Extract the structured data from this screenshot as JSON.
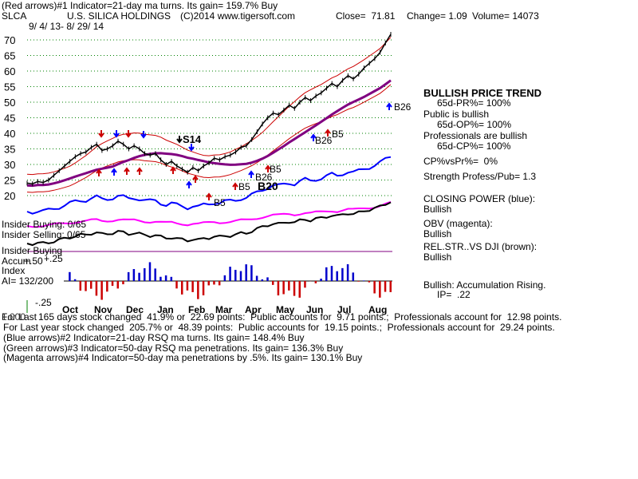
{
  "header": {
    "line1": "(Red arrows)#1 Indicator=21-day ma turns. Its gain= 159.7% Buy",
    "symbol": "SLCA",
    "company": "U.S. SILICA HOLDINGS",
    "copyright": "(C)2014 www.tigersoft.com",
    "close": "Close=  71.81",
    "change": "Change= 1.09",
    "volume": "Volume= 14073",
    "dates": "9/ 4/ 13- 8/ 29/ 14"
  },
  "right_panel": {
    "trend_title": "BULLISH PRICE TREND",
    "pr": "65d-PR%= 100%",
    "public_title": "Public is bullish",
    "op": "65d-OP%= 100%",
    "pro_title": "Professionals are bullish",
    "cp": "65d-CP%= 100%",
    "cpvspr": "CP%vsPr%=  0%",
    "strength": "Strength Profess/Pub= 1.3",
    "closing_power": "CLOSING POWER (blue):",
    "closing_power_val": "Bullish",
    "obv": "OBV (magenta):",
    "obv_val": "Bullish",
    "relstr": "REL.STR..VS DJI (brown):",
    "relstr_val": "Bullish",
    "accum": "Bullish: Accumulation Rising.",
    "ip": "IP=  .22"
  },
  "left_labels": {
    "insider_buying": "Insider Buying: 0/65",
    "insider_selling": "Insider Selling: 0/65",
    "insider_buying2": "Insider Buying",
    "accum": "Accum",
    "index": "Index",
    "ai": "AI= 132/200",
    "plus25": "+.25",
    "plus50": "+.50",
    "minus25": "-.25"
  },
  "signals": {
    "s14": "S14",
    "b20": "B20",
    "b5_a": "B5",
    "b5_b": "B5",
    "b5_c": "B5",
    "b5_d": "B5",
    "b26_a": "B26",
    "b26_b": "B26",
    "b26_c": "B26"
  },
  "footer": {
    "line1a": "For Last",
    "line1": "165 days stock changed  41.9% or  22.69 points:  Public accounts for  9.71 points.;  Professionals account for  12.98 points.",
    "line1b": "1.000",
    "line2": "For Last year stock changed  205.7% or  48.39 points:  Public accounts for  19.15 points.;  Professionals account for  29.24 points.",
    "line3": "(Blue arrows)#2 Indicator=21-day RSQ ma turns. Its gain= 148.4% Buy",
    "line4": "(Green arrows)#3 Indicator=50-day RSQ ma penetrations. Its gain= 136.3% Buy",
    "line5": "(Magenta arrows)#4 Indicator=50-day ma penetrations by .5%. Its gain= 130.1% Buy"
  },
  "colors": {
    "price": "#000000",
    "band": "#cc0000",
    "ma50": "#800080",
    "closing_power": "#0000ff",
    "obv": "#ff00ff",
    "relstr": "#000000",
    "accum_pos": "#0000cc",
    "accum_neg": "#cc0000",
    "grid": "#008000"
  },
  "chart_data": {
    "type": "line",
    "ylim": [
      20,
      75
    ],
    "yticks": [
      "70",
      "65",
      "60",
      "55",
      "50",
      "45",
      "40",
      "35",
      "30",
      "25",
      "20"
    ],
    "xticks": [
      "Oct",
      "Nov",
      "Dec",
      "Jan",
      "Feb",
      "Mar",
      "Apr",
      "May",
      "Jun",
      "Jul",
      "Aug"
    ],
    "series": [
      {
        "values": [
          24.0,
          23.8,
          24.5,
          24.2,
          25.0,
          26.5,
          28.0,
          29.5,
          31.0,
          32.5,
          33.5,
          34.0,
          35.5,
          36.5,
          34.5,
          35.0,
          36.0,
          37.5,
          36.5,
          35.0,
          36.0,
          35.0,
          33.5,
          33.0,
          33.5,
          31.5,
          30.0,
          31.0,
          29.5,
          28.5,
          27.5,
          29.0,
          28.0,
          29.5,
          30.5,
          32.0,
          31.5,
          32.5,
          33.0,
          34.0,
          35.5,
          36.0,
          38.0,
          40.5,
          43.0,
          45.0,
          46.5,
          46.0,
          47.5,
          49.0,
          48.0,
          50.0,
          51.5,
          50.5,
          52.0,
          53.0,
          54.5,
          56.0,
          55.0,
          57.0,
          58.5,
          57.5,
          59.0,
          61.0,
          62.5,
          64.0,
          66.0,
          69.0,
          71.81
        ]
      }
    ]
  }
}
